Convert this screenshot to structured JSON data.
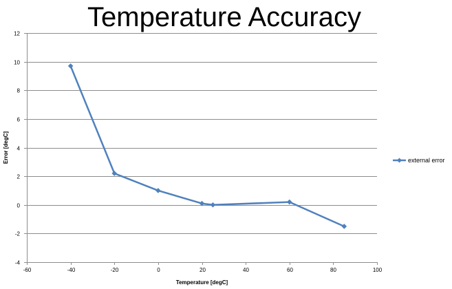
{
  "chart_data": {
    "type": "scatter",
    "title": "Temperature Accuracy",
    "xlabel": "Temperature [degC]",
    "ylabel": "Error [degC]",
    "xlim": [
      -60,
      100
    ],
    "ylim": [
      -4,
      12
    ],
    "x_ticks": [
      -60,
      -40,
      -20,
      0,
      20,
      40,
      60,
      80,
      100
    ],
    "y_ticks": [
      -4,
      -2,
      0,
      2,
      4,
      6,
      8,
      10,
      12
    ],
    "x_tick_labels": [
      "-60",
      "-40",
      "-20",
      "0",
      "20",
      "40",
      "60",
      "80",
      "100"
    ],
    "y_tick_labels": [
      "-4",
      "-2",
      "0",
      "2",
      "4",
      "6",
      "8",
      "10",
      "12"
    ],
    "grid": "horizontal",
    "legend_position": "right",
    "series": [
      {
        "name": "external error",
        "color": "#4f81bd",
        "marker": "diamond",
        "line": true,
        "x": [
          -40,
          -20,
          0,
          20,
          25,
          60,
          85
        ],
        "y": [
          9.7,
          2.2,
          1.0,
          0.1,
          0.0,
          0.2,
          -1.5
        ]
      }
    ]
  }
}
